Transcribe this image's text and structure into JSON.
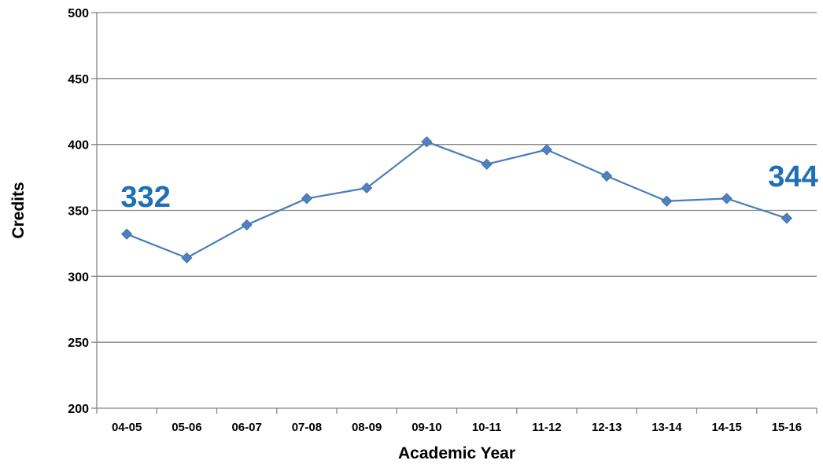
{
  "chart_data": {
    "type": "line",
    "title": "",
    "xlabel": "Academic Year",
    "ylabel": "Credits",
    "ylim": [
      200,
      500
    ],
    "yticks": [
      "200",
      "250",
      "300",
      "350",
      "400",
      "450",
      "500"
    ],
    "grid": "horizontal",
    "legend": "none",
    "categories": [
      "04-05",
      "05-06",
      "06-07",
      "07-08",
      "08-09",
      "09-10",
      "10-11",
      "11-12",
      "12-13",
      "13-14",
      "14-15",
      "15-16"
    ],
    "series": [
      {
        "values": [
          332,
          314,
          339,
          359,
          367,
          402,
          385,
          396,
          376,
          357,
          359,
          344
        ]
      }
    ],
    "annotations": [
      {
        "text": "332",
        "category": "04-05"
      },
      {
        "text": "344",
        "category": "15-16"
      }
    ]
  },
  "colors": {
    "series": "#4a7ebb",
    "marker": "#4f81bd",
    "annotation": "#1f6fb5",
    "grid": "#868686",
    "axis": "#868686"
  }
}
